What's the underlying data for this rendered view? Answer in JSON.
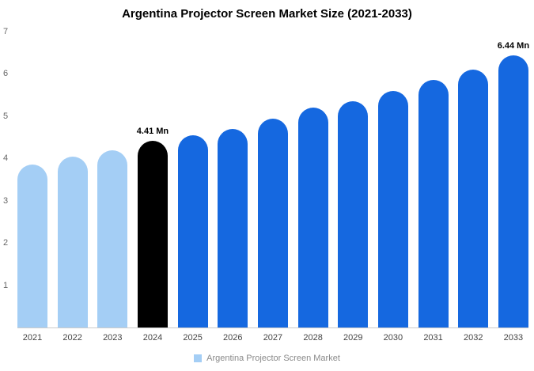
{
  "chart_data": {
    "type": "bar",
    "title": "Argentina Projector Screen Market Size (2021-2033)",
    "categories": [
      "2021",
      "2022",
      "2023",
      "2024",
      "2025",
      "2026",
      "2027",
      "2028",
      "2029",
      "2030",
      "2031",
      "2032",
      "2033"
    ],
    "values": [
      3.85,
      4.05,
      4.2,
      4.41,
      4.55,
      4.7,
      4.95,
      5.2,
      5.35,
      5.6,
      5.85,
      6.1,
      6.44
    ],
    "bar_colors": [
      "#A4CEF5",
      "#A4CEF5",
      "#A4CEF5",
      "#000000",
      "#1568E0",
      "#1568E0",
      "#1568E0",
      "#1568E0",
      "#1568E0",
      "#1568E0",
      "#1568E0",
      "#1568E0",
      "#1568E0"
    ],
    "annotations": [
      {
        "index": 3,
        "text": "4.41 Mn"
      },
      {
        "index": 12,
        "text": "6.44 Mn"
      }
    ],
    "ylim": [
      0,
      7
    ],
    "yticks": [
      "1",
      "2",
      "3",
      "4",
      "5",
      "6",
      "7"
    ],
    "grid": false,
    "legend_position": "bottom",
    "legend": {
      "label": "Argentina Projector Screen Market",
      "swatch_color": "#A4CEF5"
    },
    "colors": {
      "historic_bars": "#A4CEF5",
      "current_bar": "#000000",
      "forecast_bars": "#1568E0",
      "axis_line": "#CCCCCC"
    }
  }
}
